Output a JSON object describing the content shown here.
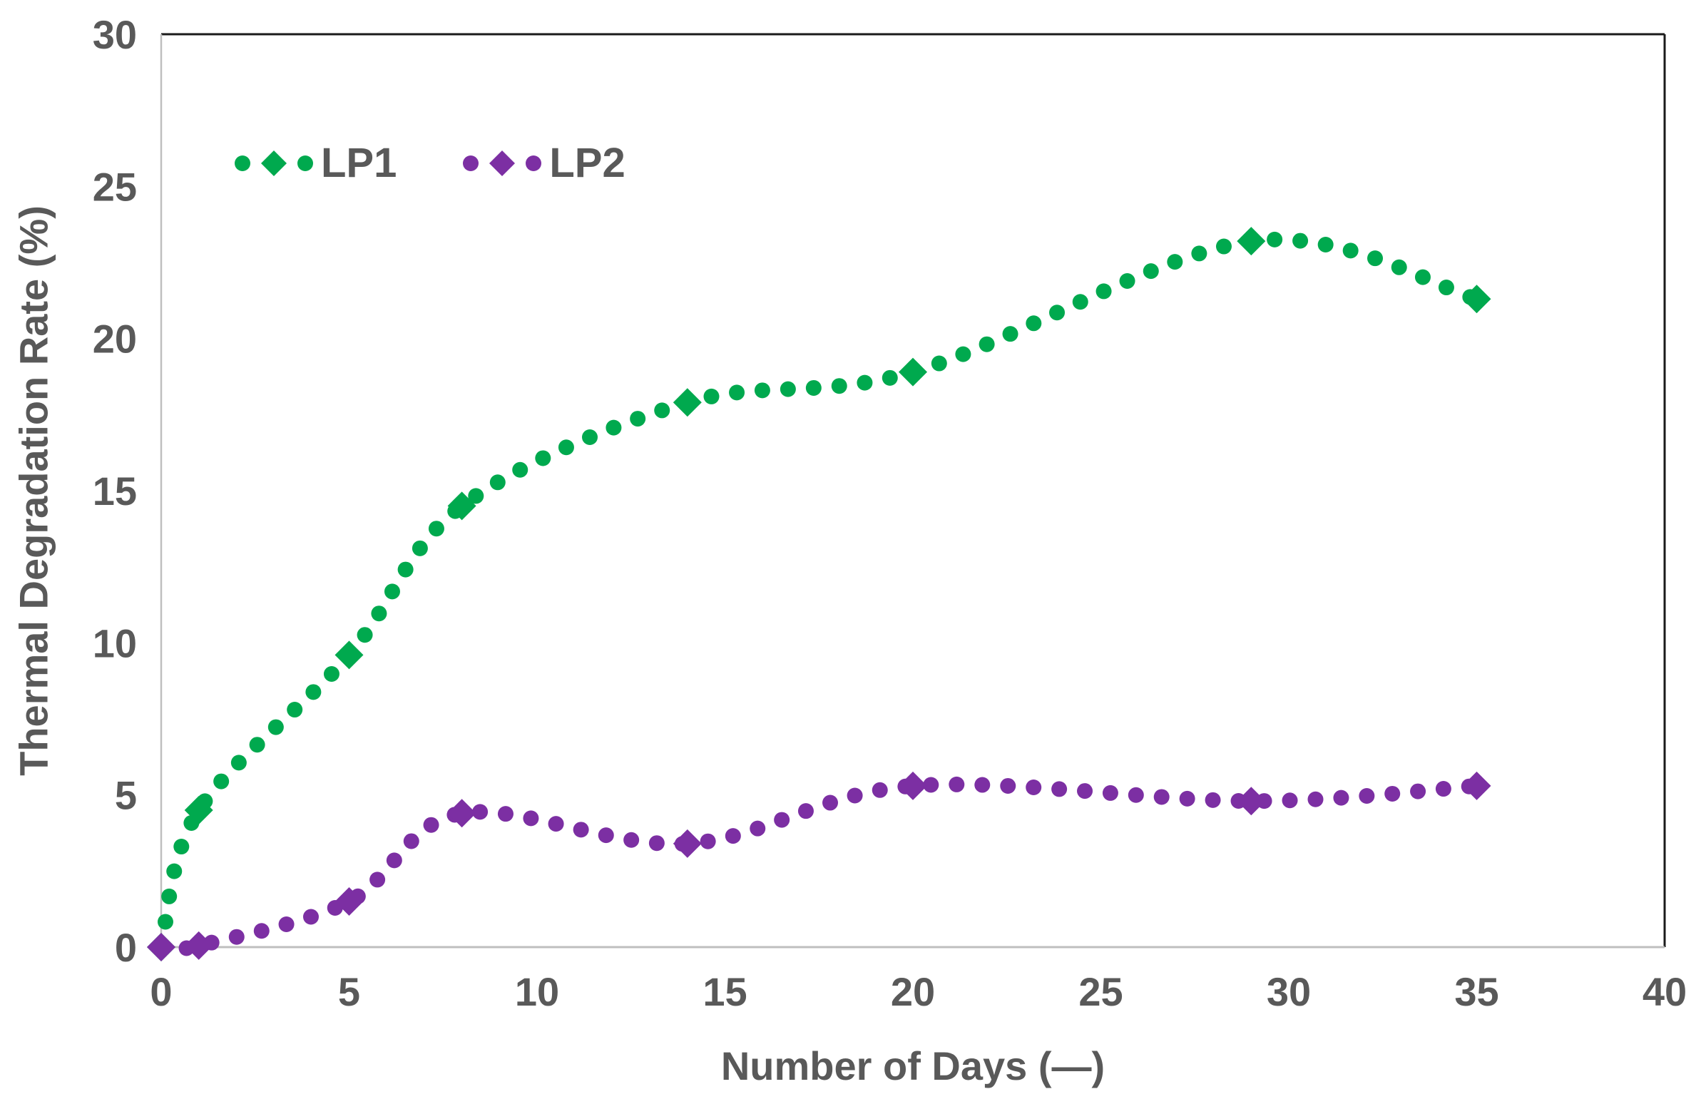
{
  "chart_data": {
    "type": "scatter",
    "title": "",
    "xlabel": "Number of Days (—)",
    "ylabel": "Thermal Degradation Rate (%)",
    "xlim": [
      0,
      40
    ],
    "ylim": [
      0,
      30
    ],
    "x_ticks": [
      0,
      5,
      10,
      15,
      20,
      25,
      30,
      35,
      40
    ],
    "y_ticks": [
      0,
      5,
      10,
      15,
      20,
      25,
      30
    ],
    "grid": false,
    "legend_position": "top-left-inside",
    "line_style": "dotted-smooth",
    "marker": "diamond",
    "series": [
      {
        "name": "LP1",
        "color": "#00A94E",
        "x": [
          0,
          1,
          5,
          8,
          14,
          20,
          29,
          35
        ],
        "y": [
          0,
          4.5,
          9.6,
          14.5,
          17.9,
          18.9,
          23.2,
          21.3
        ]
      },
      {
        "name": "LP2",
        "color": "#7C2FA3",
        "x": [
          0,
          1,
          5,
          8,
          14,
          20,
          29,
          35
        ],
        "y": [
          0,
          0.05,
          1.5,
          4.4,
          3.4,
          5.3,
          4.8,
          5.3
        ]
      }
    ]
  },
  "colors": {
    "text": "#595959",
    "axis_line": "#BFBFBF",
    "frame_line": "#1a1a1a",
    "background": "#ffffff"
  },
  "legend": {
    "items": [
      {
        "label": "LP1"
      },
      {
        "label": "LP2"
      }
    ]
  }
}
